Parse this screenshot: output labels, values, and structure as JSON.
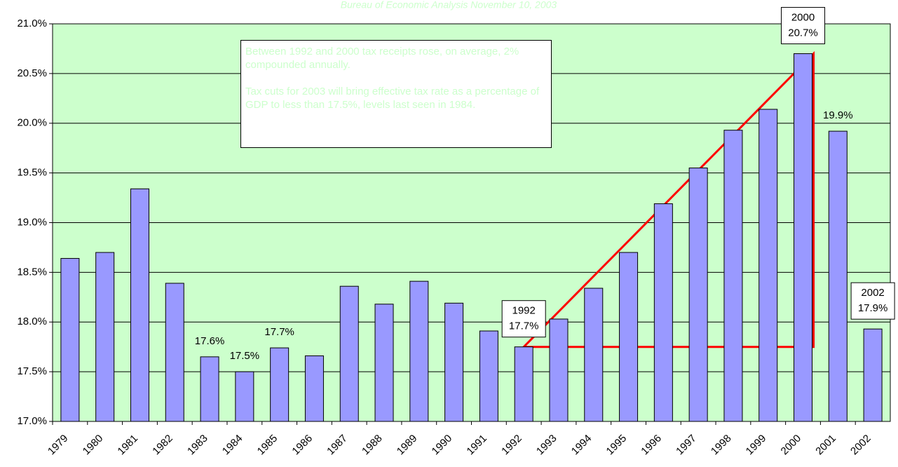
{
  "chart_data": {
    "type": "bar",
    "title": "Bureau of Economic Analysis November 10, 2003",
    "annotation": [
      "Between 1992 and 2000 tax receipts rose, on average, 2% compounded annually.",
      "Tax cuts for 2003 will bring effective tax rate as a percentage of GDP to less than 17.5%, levels last seen in 1984."
    ],
    "categories": [
      "1979",
      "1980",
      "1981",
      "1982",
      "1983",
      "1984",
      "1985",
      "1986",
      "1987",
      "1988",
      "1989",
      "1990",
      "1991",
      "1992",
      "1993",
      "1994",
      "1995",
      "1996",
      "1997",
      "1998",
      "1999",
      "2000",
      "2001",
      "2002"
    ],
    "values": [
      18.64,
      18.7,
      19.34,
      18.39,
      17.65,
      17.5,
      17.74,
      17.66,
      18.36,
      18.18,
      18.41,
      18.19,
      17.91,
      17.75,
      18.03,
      18.34,
      18.7,
      19.19,
      19.55,
      19.93,
      20.14,
      20.7,
      19.92,
      17.93
    ],
    "value_labels": [
      null,
      null,
      null,
      null,
      "17.6%",
      "17.5%",
      "17.7%",
      null,
      null,
      null,
      null,
      null,
      null,
      "17.7%",
      null,
      null,
      null,
      null,
      null,
      null,
      null,
      "20.7%",
      "19.9%",
      "17.9%"
    ],
    "color": "#9999ff",
    "ylim": [
      17.0,
      21.0
    ],
    "yticks": [
      {
        "value": 17.0,
        "label": "17.0%"
      },
      {
        "value": 17.5,
        "label": "17.5%"
      },
      {
        "value": 18.0,
        "label": "18.0%"
      },
      {
        "value": 18.5,
        "label": "18.5%"
      },
      {
        "value": 19.0,
        "label": "19.0%"
      },
      {
        "value": 19.5,
        "label": "19.5%"
      },
      {
        "value": 20.0,
        "label": "20.0%"
      },
      {
        "value": 20.5,
        "label": "20.5%"
      },
      {
        "value": 21.0,
        "label": "21.0%"
      }
    ],
    "grid": true
  }
}
